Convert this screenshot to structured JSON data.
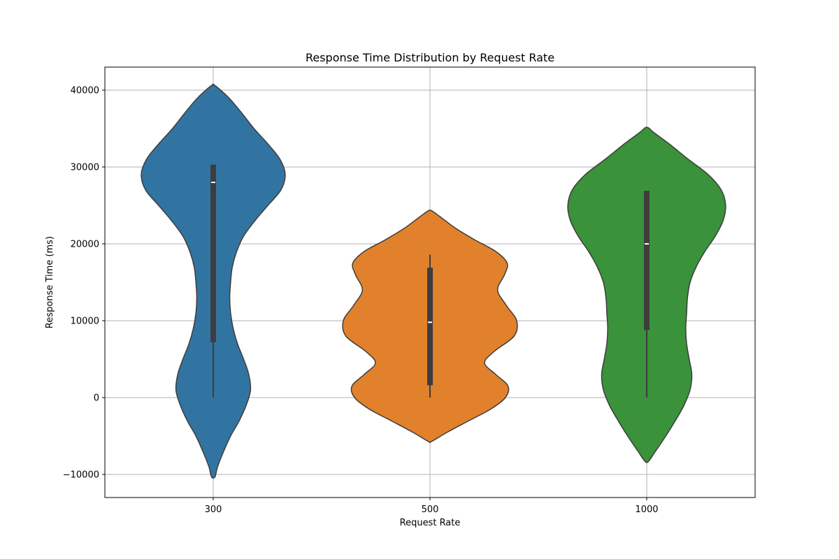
{
  "chart_data": {
    "type": "violin",
    "title": "Response Time Distribution by Request Rate",
    "xlabel": "Request Rate",
    "ylabel": "Response Time (ms)",
    "categories": [
      "300",
      "500",
      "1000"
    ],
    "ylim": [
      -13000,
      43000
    ],
    "yticks": [
      -10000,
      0,
      10000,
      20000,
      30000,
      40000
    ],
    "ytick_labels": [
      "−10000",
      "0",
      "10000",
      "20000",
      "30000",
      "40000"
    ],
    "grid": true,
    "colors": [
      "#3274a1",
      "#e1812c",
      "#3a923a"
    ],
    "violins": [
      {
        "category": "300",
        "min": -10300,
        "max": 40600,
        "box": {
          "whisker_low": 0,
          "q1": 7200,
          "median": 28000,
          "q3": 30300,
          "whisker_high": 30300
        },
        "density": [
          [
            -10300,
            0.02
          ],
          [
            -9000,
            0.05
          ],
          [
            -7000,
            0.12
          ],
          [
            -5000,
            0.2
          ],
          [
            -3000,
            0.3
          ],
          [
            -1000,
            0.38
          ],
          [
            1000,
            0.43
          ],
          [
            3000,
            0.41
          ],
          [
            5000,
            0.35
          ],
          [
            7000,
            0.28
          ],
          [
            9000,
            0.23
          ],
          [
            11000,
            0.2
          ],
          [
            13000,
            0.19
          ],
          [
            15000,
            0.2
          ],
          [
            17000,
            0.22
          ],
          [
            19000,
            0.27
          ],
          [
            21000,
            0.35
          ],
          [
            23000,
            0.48
          ],
          [
            25000,
            0.63
          ],
          [
            27000,
            0.78
          ],
          [
            29000,
            0.83
          ],
          [
            31000,
            0.77
          ],
          [
            33000,
            0.63
          ],
          [
            35000,
            0.47
          ],
          [
            37000,
            0.33
          ],
          [
            39000,
            0.18
          ],
          [
            40600,
            0.02
          ]
        ]
      },
      {
        "category": "500",
        "min": -5700,
        "max": 24300,
        "box": {
          "whisker_low": 0,
          "q1": 1600,
          "median": 9800,
          "q3": 16900,
          "whisker_high": 18600
        },
        "density": [
          [
            -5700,
            0.02
          ],
          [
            -4500,
            0.2
          ],
          [
            -3000,
            0.45
          ],
          [
            -1500,
            0.7
          ],
          [
            0,
            0.87
          ],
          [
            1500,
            0.9
          ],
          [
            3000,
            0.76
          ],
          [
            4500,
            0.63
          ],
          [
            6000,
            0.74
          ],
          [
            8000,
            0.97
          ],
          [
            10000,
            1.0
          ],
          [
            12000,
            0.88
          ],
          [
            14000,
            0.78
          ],
          [
            16000,
            0.86
          ],
          [
            17500,
            0.89
          ],
          [
            19000,
            0.76
          ],
          [
            20500,
            0.52
          ],
          [
            22000,
            0.3
          ],
          [
            23500,
            0.12
          ],
          [
            24300,
            0.02
          ]
        ]
      },
      {
        "category": "1000",
        "min": -8300,
        "max": 35100,
        "box": {
          "whisker_low": 0,
          "q1": 8800,
          "median": 20000,
          "q3": 26900,
          "whisker_high": 26900
        },
        "density": [
          [
            -8300,
            0.02
          ],
          [
            -7000,
            0.1
          ],
          [
            -5000,
            0.22
          ],
          [
            -3000,
            0.33
          ],
          [
            -1000,
            0.43
          ],
          [
            1000,
            0.5
          ],
          [
            3000,
            0.52
          ],
          [
            5000,
            0.49
          ],
          [
            7000,
            0.46
          ],
          [
            9000,
            0.45
          ],
          [
            11000,
            0.46
          ],
          [
            13000,
            0.47
          ],
          [
            15000,
            0.5
          ],
          [
            17000,
            0.57
          ],
          [
            19000,
            0.67
          ],
          [
            21000,
            0.79
          ],
          [
            23000,
            0.88
          ],
          [
            25000,
            0.91
          ],
          [
            27000,
            0.86
          ],
          [
            29000,
            0.71
          ],
          [
            31000,
            0.48
          ],
          [
            33000,
            0.26
          ],
          [
            34500,
            0.08
          ],
          [
            35100,
            0.02
          ]
        ]
      }
    ]
  }
}
